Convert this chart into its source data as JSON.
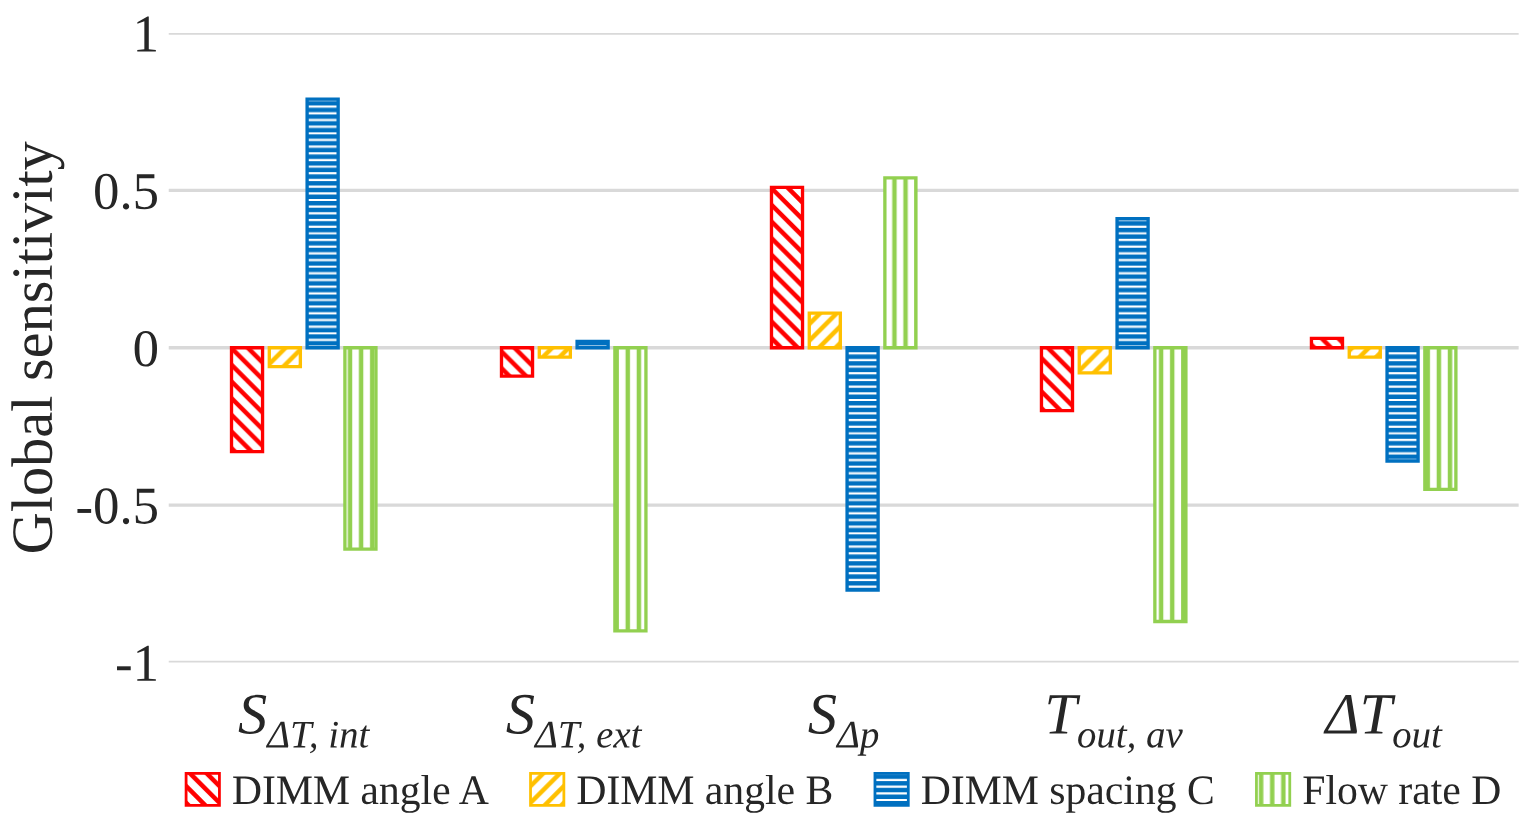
{
  "chart_data": {
    "type": "bar",
    "ylabel": "Global sensitivity",
    "categories": [
      "S$_{ΔT, int}$",
      "S$_{ΔT, ext}$",
      "S$_{Δp}$",
      "T$_{out, av}$",
      "ΔT$_{out}$"
    ],
    "series": [
      {
        "name": "DIMM angle A",
        "color": "#ff0000",
        "values": [
          -0.33,
          -0.09,
          0.51,
          -0.2,
          0.03
        ]
      },
      {
        "name": "DIMM angle B",
        "color": "#ffc000",
        "values": [
          -0.06,
          -0.03,
          0.11,
          -0.08,
          -0.03
        ]
      },
      {
        "name": "DIMM spacing C",
        "color": "#0070c0",
        "values": [
          0.79,
          0.02,
          -0.77,
          0.41,
          -0.36
        ]
      },
      {
        "name": "Flow rate D",
        "color": "#92d050",
        "values": [
          -0.64,
          -0.9,
          0.54,
          -0.87,
          -0.45
        ]
      }
    ],
    "ylim": [
      -1,
      1
    ],
    "yticks": [
      -1,
      -0.5,
      0,
      0.5,
      1
    ],
    "grid": "y",
    "legend": "bottom"
  }
}
